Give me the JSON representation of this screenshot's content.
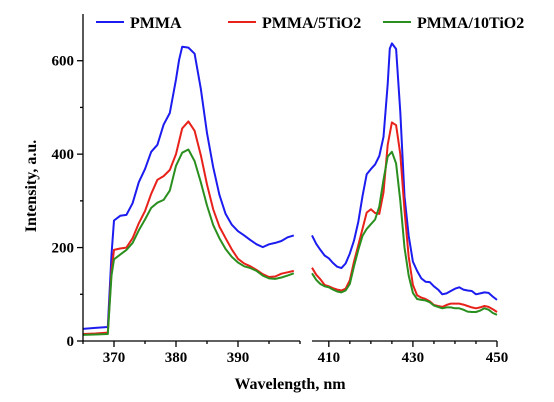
{
  "chart_data": {
    "type": "line",
    "xlabel": "Wavelength, nm",
    "ylabel": "Intensity, a.u.",
    "axis_break": true,
    "x_segments": [
      [
        365,
        400
      ],
      [
        406,
        450
      ]
    ],
    "ylim": [
      0,
      700
    ],
    "x_ticks": [
      370,
      380,
      390,
      410,
      430,
      450
    ],
    "y_ticks": [
      0,
      200,
      400,
      600
    ],
    "grid": false,
    "legend": {
      "placement": "top",
      "orientation": "horizontal"
    },
    "series": [
      {
        "name": "PMMA",
        "color": "#1c1cf0",
        "points": [
          [
            365,
            26
          ],
          [
            367,
            28
          ],
          [
            369,
            30
          ],
          [
            369.6,
            185
          ],
          [
            370,
            258
          ],
          [
            371,
            268
          ],
          [
            372,
            270
          ],
          [
            373,
            295
          ],
          [
            374,
            340
          ],
          [
            375,
            368
          ],
          [
            376,
            405
          ],
          [
            377,
            420
          ],
          [
            378,
            463
          ],
          [
            379,
            488
          ],
          [
            380,
            560
          ],
          [
            380.5,
            602
          ],
          [
            381,
            630
          ],
          [
            382,
            628
          ],
          [
            383,
            615
          ],
          [
            384,
            540
          ],
          [
            385,
            445
          ],
          [
            386,
            372
          ],
          [
            387,
            313
          ],
          [
            388,
            272
          ],
          [
            389,
            249
          ],
          [
            390,
            235
          ],
          [
            391,
            226
          ],
          [
            392,
            216
          ],
          [
            393,
            207
          ],
          [
            394,
            201
          ],
          [
            395,
            207
          ],
          [
            396,
            210
          ],
          [
            397,
            214
          ],
          [
            398,
            222
          ],
          [
            399,
            226
          ],
          null,
          [
            406,
            226
          ],
          [
            407,
            208
          ],
          [
            408,
            195
          ],
          [
            409,
            183
          ],
          [
            410,
            177
          ],
          [
            411,
            167
          ],
          [
            412,
            159
          ],
          [
            413,
            156
          ],
          [
            414,
            166
          ],
          [
            415,
            187
          ],
          [
            416,
            215
          ],
          [
            417,
            255
          ],
          [
            418,
            310
          ],
          [
            419,
            357
          ],
          [
            420,
            368
          ],
          [
            421,
            378
          ],
          [
            422,
            396
          ],
          [
            423,
            437
          ],
          [
            424,
            550
          ],
          [
            424.5,
            626
          ],
          [
            425,
            637
          ],
          [
            426,
            625
          ],
          [
            427,
            490
          ],
          [
            428,
            310
          ],
          [
            429,
            225
          ],
          [
            430,
            170
          ],
          [
            431,
            150
          ],
          [
            432,
            134
          ],
          [
            433,
            127
          ],
          [
            434,
            126
          ],
          [
            435,
            117
          ],
          [
            436,
            110
          ],
          [
            437,
            100
          ],
          [
            438,
            102
          ],
          [
            439,
            107
          ],
          [
            440,
            112
          ],
          [
            441,
            115
          ],
          [
            442,
            110
          ],
          [
            443,
            108
          ],
          [
            444,
            107
          ],
          [
            445,
            100
          ],
          [
            446,
            102
          ],
          [
            447,
            104
          ],
          [
            448,
            103
          ],
          [
            449,
            95
          ],
          [
            450,
            88
          ]
        ]
      },
      {
        "name": "PMMA/5TiO2",
        "color": "#e8211b",
        "points": [
          [
            365,
            15
          ],
          [
            367,
            16
          ],
          [
            369,
            18
          ],
          [
            369.6,
            150
          ],
          [
            370,
            195
          ],
          [
            371,
            198
          ],
          [
            372,
            200
          ],
          [
            373,
            220
          ],
          [
            374,
            252
          ],
          [
            375,
            278
          ],
          [
            376,
            315
          ],
          [
            377,
            345
          ],
          [
            378,
            353
          ],
          [
            379,
            366
          ],
          [
            380,
            400
          ],
          [
            381,
            455
          ],
          [
            382,
            470
          ],
          [
            383,
            450
          ],
          [
            384,
            398
          ],
          [
            385,
            335
          ],
          [
            386,
            282
          ],
          [
            387,
            245
          ],
          [
            388,
            220
          ],
          [
            389,
            196
          ],
          [
            390,
            176
          ],
          [
            391,
            166
          ],
          [
            392,
            160
          ],
          [
            393,
            152
          ],
          [
            394,
            143
          ],
          [
            395,
            137
          ],
          [
            396,
            138
          ],
          [
            397,
            144
          ],
          [
            398,
            147
          ],
          [
            399,
            150
          ],
          null,
          [
            406,
            157
          ],
          [
            407,
            142
          ],
          [
            408,
            132
          ],
          [
            409,
            120
          ],
          [
            410,
            117
          ],
          [
            411,
            113
          ],
          [
            412,
            110
          ],
          [
            413,
            108
          ],
          [
            414,
            112
          ],
          [
            415,
            130
          ],
          [
            416,
            170
          ],
          [
            417,
            205
          ],
          [
            418,
            240
          ],
          [
            419,
            275
          ],
          [
            420,
            282
          ],
          [
            421,
            274
          ],
          [
            422,
            272
          ],
          [
            423,
            318
          ],
          [
            424,
            420
          ],
          [
            425,
            468
          ],
          [
            426,
            462
          ],
          [
            427,
            400
          ],
          [
            428,
            280
          ],
          [
            429,
            180
          ],
          [
            430,
            120
          ],
          [
            431,
            98
          ],
          [
            432,
            93
          ],
          [
            433,
            90
          ],
          [
            434,
            85
          ],
          [
            435,
            77
          ],
          [
            436,
            75
          ],
          [
            437,
            73
          ],
          [
            438,
            77
          ],
          [
            439,
            80
          ],
          [
            440,
            80
          ],
          [
            441,
            80
          ],
          [
            442,
            78
          ],
          [
            443,
            75
          ],
          [
            444,
            72
          ],
          [
            445,
            70
          ],
          [
            446,
            72
          ],
          [
            447,
            75
          ],
          [
            448,
            73
          ],
          [
            449,
            68
          ],
          [
            450,
            62
          ]
        ]
      },
      {
        "name": "PMMA/10TiO2",
        "color": "#2a8f1f",
        "points": [
          [
            365,
            13
          ],
          [
            367,
            14
          ],
          [
            369,
            15
          ],
          [
            369.6,
            140
          ],
          [
            370,
            175
          ],
          [
            371,
            185
          ],
          [
            372,
            195
          ],
          [
            373,
            210
          ],
          [
            374,
            237
          ],
          [
            375,
            260
          ],
          [
            376,
            285
          ],
          [
            377,
            296
          ],
          [
            378,
            302
          ],
          [
            379,
            322
          ],
          [
            380,
            375
          ],
          [
            381,
            403
          ],
          [
            382,
            410
          ],
          [
            383,
            385
          ],
          [
            384,
            340
          ],
          [
            385,
            290
          ],
          [
            386,
            248
          ],
          [
            387,
            220
          ],
          [
            388,
            197
          ],
          [
            389,
            180
          ],
          [
            390,
            168
          ],
          [
            391,
            160
          ],
          [
            392,
            156
          ],
          [
            393,
            150
          ],
          [
            394,
            140
          ],
          [
            395,
            134
          ],
          [
            396,
            133
          ],
          [
            397,
            136
          ],
          [
            398,
            140
          ],
          [
            399,
            145
          ],
          null,
          [
            406,
            145
          ],
          [
            407,
            131
          ],
          [
            408,
            122
          ],
          [
            409,
            117
          ],
          [
            410,
            115
          ],
          [
            411,
            110
          ],
          [
            412,
            106
          ],
          [
            413,
            104
          ],
          [
            414,
            108
          ],
          [
            415,
            122
          ],
          [
            416,
            160
          ],
          [
            417,
            195
          ],
          [
            418,
            225
          ],
          [
            419,
            240
          ],
          [
            420,
            250
          ],
          [
            421,
            260
          ],
          [
            422,
            288
          ],
          [
            423,
            345
          ],
          [
            424,
            395
          ],
          [
            425,
            405
          ],
          [
            426,
            380
          ],
          [
            427,
            300
          ],
          [
            428,
            200
          ],
          [
            429,
            140
          ],
          [
            430,
            103
          ],
          [
            431,
            90
          ],
          [
            432,
            88
          ],
          [
            433,
            87
          ],
          [
            434,
            83
          ],
          [
            435,
            76
          ],
          [
            436,
            73
          ],
          [
            437,
            70
          ],
          [
            438,
            72
          ],
          [
            439,
            72
          ],
          [
            440,
            70
          ],
          [
            441,
            70
          ],
          [
            442,
            67
          ],
          [
            443,
            63
          ],
          [
            444,
            62
          ],
          [
            445,
            62
          ],
          [
            446,
            65
          ],
          [
            447,
            70
          ],
          [
            448,
            67
          ],
          [
            449,
            60
          ],
          [
            450,
            56
          ]
        ]
      }
    ]
  }
}
